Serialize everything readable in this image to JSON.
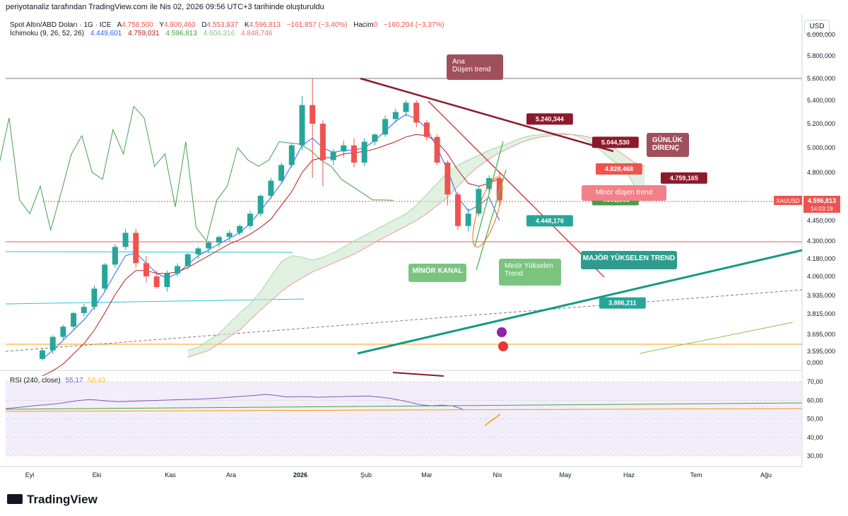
{
  "header": {
    "caption": "periyotanaliz tarafından TradingView.com ile Nis 02, 2026 09:56 UTC+3 tarihinde oluşturuldu",
    "symbol": "Spot Altın/ABD Doları · 1G · ICE",
    "ohlc": {
      "a_label": "A",
      "a_value": "4.758,500",
      "y_label": "Y",
      "y_value": "4.800,460",
      "d_label": "D",
      "d_value": "4.553,837",
      "k_label": "K",
      "k_value": "4.596,813",
      "change": "−161,857 (−3,40%)",
      "volume_label": "Hacim",
      "volume_value": "0",
      "volume_change": "−160,204 (−3,37%)"
    },
    "ichimoku_label": "İchimoku (9, 26, 52, 26)",
    "ichimoku_values": [
      "4.449,601",
      "4.759,031",
      "4.596,813",
      "4.604,316",
      "4.848,746"
    ],
    "currency_button": "USD"
  },
  "rsi_legend": {
    "label": "RSI (240, close)",
    "value1": "55,17",
    "value2": "58,43"
  },
  "branding": {
    "logo_text": "TradingView"
  },
  "colors": {
    "up": "#26a69a",
    "down": "#ef5350",
    "tenkan": "#2962ff",
    "kijun": "#b71c1c",
    "chikou": "#43a047",
    "span_a": "#a5d6a7",
    "span_b": "#ef9a9a",
    "trend_major": "#159a82",
    "trend_main": "#8b1a2b",
    "trend_minor": "#e53935",
    "rsi": "#7e57c2",
    "rsi_bg": "#ede7f6"
  },
  "chart_data": {
    "type": "candlestick",
    "symbol": "XAUUSD",
    "timeframe": "1G",
    "x_tick_labels": [
      "Eyl",
      "Eki",
      "Kas",
      "Ara",
      "2026",
      "Şub",
      "Mar",
      "Nis",
      "May",
      "Haz",
      "Tem",
      "Ağu"
    ],
    "y_tick_labels": [
      "6.000,000",
      "5.800,000",
      "5.600,000",
      "5.400,000",
      "5.200,000",
      "5.000,000",
      "4.800,000",
      "4.450,000",
      "4.300,000",
      "4.180,000",
      "4.060,000",
      "3.935,000",
      "3.815,000",
      "3.695,000",
      "3.595,000",
      "0,000"
    ],
    "y_tick_values": [
      6000,
      5800,
      5600,
      5400,
      5200,
      5000,
      4800,
      4450,
      4300,
      4180,
      4060,
      3935,
      3815,
      3695,
      3595,
      0
    ],
    "last_price_label": "XAUUSD",
    "last_price": "4.596,813",
    "countdown": "14:03:19",
    "price_tags": [
      {
        "text": "5.240,344",
        "value": 5240.344,
        "color": "#8b1a2b"
      },
      {
        "text": "5.044,530",
        "value": 5044.53,
        "color": "#8b1a2b"
      },
      {
        "text": "4.828,468",
        "value": 4828.468,
        "color": "#ef5350"
      },
      {
        "text": "4.759,165",
        "value": 4759.165,
        "color": "#8b1a2b"
      },
      {
        "text": "4.601,661",
        "value": 4601.661,
        "color": "#43a047"
      },
      {
        "text": "4.448,176",
        "value": 4448.176,
        "color": "#26a69a"
      },
      {
        "text": "3.886,211",
        "value": 3886.211,
        "color": "#26a69a"
      }
    ],
    "annotations": [
      {
        "text": "Ana\nDüşen trend",
        "color": "#a0505a"
      },
      {
        "text": "GÜNLÜK\nDİRENÇ",
        "color": "#a0505a"
      },
      {
        "text": "Minör düşen trend",
        "color": "#f28088"
      },
      {
        "text": "MİNÖR KANAL",
        "color": "#7bc47f"
      },
      {
        "text": "Minör Yükselen\nTrend",
        "color": "#7bc47f"
      },
      {
        "text": "MAJÖR YÜKSELEN TREND",
        "color": "#2e9c8c"
      }
    ],
    "series": [
      {
        "name": "XAUUSD",
        "role": "candles",
        "open": [
          3550,
          3600,
          3680,
          3740,
          3820,
          3860,
          3980,
          4140,
          4260,
          4360,
          4150,
          4060,
          3990,
          4080,
          4130,
          4210,
          4250,
          4290,
          4330,
          4360,
          4410,
          4500,
          4630,
          4740,
          4860,
          5020,
          5360,
          5200,
          4900,
          4970,
          5020,
          4880,
          5050,
          5110,
          5240,
          5300,
          5380,
          5210,
          5090,
          4880,
          4640,
          4410,
          4500,
          4680,
          4759
        ],
        "high": [
          3610,
          3690,
          3750,
          3830,
          3880,
          4000,
          4150,
          4280,
          4390,
          4390,
          4200,
          4100,
          4100,
          4150,
          4220,
          4260,
          4300,
          4340,
          4380,
          4420,
          4520,
          4640,
          4760,
          4880,
          5040,
          5440,
          5600,
          5230,
          4990,
          5060,
          5080,
          5080,
          5120,
          5270,
          5330,
          5400,
          5400,
          5230,
          5110,
          4900,
          4660,
          4540,
          4700,
          4780,
          4800
        ],
        "low": [
          3540,
          3580,
          3660,
          3720,
          3800,
          3840,
          3960,
          4120,
          4240,
          4120,
          4020,
          3980,
          3960,
          4060,
          4110,
          4180,
          4220,
          4260,
          4300,
          4340,
          4390,
          4480,
          4610,
          4720,
          4840,
          4980,
          4760,
          4700,
          4860,
          4920,
          4840,
          4850,
          5020,
          5090,
          5210,
          5260,
          5170,
          5060,
          4860,
          4560,
          4380,
          4370,
          4480,
          4640,
          4554
        ],
        "close": [
          3600,
          3680,
          3740,
          3820,
          3860,
          3980,
          4140,
          4260,
          4360,
          4150,
          4060,
          3990,
          4080,
          4130,
          4210,
          4250,
          4290,
          4330,
          4360,
          4410,
          4500,
          4630,
          4740,
          4860,
          5020,
          5360,
          5200,
          4900,
          4970,
          5020,
          4880,
          5050,
          5110,
          5240,
          5300,
          5380,
          5210,
          5090,
          4880,
          4640,
          4410,
          4500,
          4680,
          4759,
          4597
        ]
      },
      {
        "name": "İchimoku Tenkan",
        "values": [
          3550,
          3600,
          3660,
          3720,
          3780,
          3860,
          3960,
          4080,
          4200,
          4220,
          4150,
          4080,
          4050,
          4080,
          4140,
          4200,
          4240,
          4280,
          4320,
          4360,
          4430,
          4520,
          4620,
          4720,
          4860,
          5020,
          5080,
          5000,
          4960,
          4980,
          4980,
          5000,
          5060,
          5140,
          5220,
          5280,
          5240,
          5160,
          5000,
          4820,
          4620,
          4520,
          4560,
          4620,
          4450
        ]
      },
      {
        "name": "İchimoku Kijun",
        "values": [
          3450,
          3480,
          3520,
          3580,
          3640,
          3720,
          3820,
          3940,
          4040,
          4100,
          4100,
          4080,
          4080,
          4090,
          4120,
          4160,
          4200,
          4240,
          4280,
          4310,
          4350,
          4400,
          4460,
          4560,
          4660,
          4800,
          4900,
          4920,
          4920,
          4950,
          4960,
          4970,
          4990,
          5020,
          5050,
          5090,
          5110,
          5100,
          5050,
          4950,
          4820,
          4720,
          4700,
          4720,
          4759
        ]
      },
      {
        "name": "İchimoku Chikou",
        "values": [
          3950,
          4050,
          4180,
          3980,
          4320,
          4480,
          4850,
          5250,
          4600,
          4500,
          4700,
          4380,
          4650,
          4950,
          5100,
          4800,
          4750,
          5150,
          4950,
          5350,
          5250,
          4850,
          4950,
          4550,
          5050,
          4400,
          4300,
          4600,
          4700,
          5000,
          4900,
          4850,
          4900,
          5050,
          5040,
          5030,
          4980,
          4900,
          4850,
          4750,
          4700,
          4650,
          4600,
          4600,
          4597
        ]
      },
      {
        "name": "İchimoku Span A",
        "values": [
          3600,
          3620,
          3660,
          3700,
          3760,
          3820,
          3880,
          3960,
          4060,
          4160,
          4200,
          4190,
          4170,
          4190,
          4220,
          4260,
          4300,
          4340,
          4380,
          4420,
          4460,
          4500,
          4560,
          4640,
          4720,
          4800,
          4860,
          4900,
          4940,
          4980,
          5010,
          5040,
          5080,
          5100,
          5110,
          5120,
          5120,
          5110,
          5080,
          5030,
          4960,
          4890,
          4840,
          4700,
          4620
        ]
      },
      {
        "name": "İchimoku Span B",
        "values": [
          3560,
          3580,
          3600,
          3640,
          3680,
          3720,
          3780,
          3840,
          3900,
          3960,
          4010,
          4050,
          4090,
          4120,
          4150,
          4180,
          4210,
          4250,
          4290,
          4330,
          4370,
          4410,
          4450,
          4500,
          4560,
          4620,
          4700,
          4780,
          4850,
          4910,
          4960,
          5000,
          5040,
          5070,
          5090,
          5100,
          5110,
          5110,
          5100,
          5080,
          5050,
          5000,
          4940,
          4880,
          4849
        ]
      },
      {
        "name": "RSI (240, close)",
        "values": [
          55.5,
          56.0,
          56.6,
          57.2,
          57.6,
          58.2,
          59.0,
          59.8,
          60.4,
          60.0,
          59.5,
          59.2,
          59.4,
          59.6,
          59.8,
          60.0,
          60.2,
          60.4,
          60.5,
          60.7,
          61.0,
          61.4,
          61.8,
          62.2,
          62.6,
          63.2,
          62.6,
          61.8,
          61.9,
          62.0,
          61.6,
          61.8,
          61.9,
          62.1,
          62.2,
          62.3,
          61.7,
          61.0,
          60.0,
          58.8,
          57.5,
          57.0,
          57.4,
          57.0,
          55.17
        ]
      }
    ],
    "rsi": {
      "ylim": [
        30,
        70
      ],
      "ticks": [
        "70,00",
        "60,00",
        "50,00",
        "40,00",
        "30,00"
      ],
      "tick_values": [
        70,
        60,
        50,
        40,
        30
      ]
    },
    "grid": true,
    "legend": "top-left"
  }
}
